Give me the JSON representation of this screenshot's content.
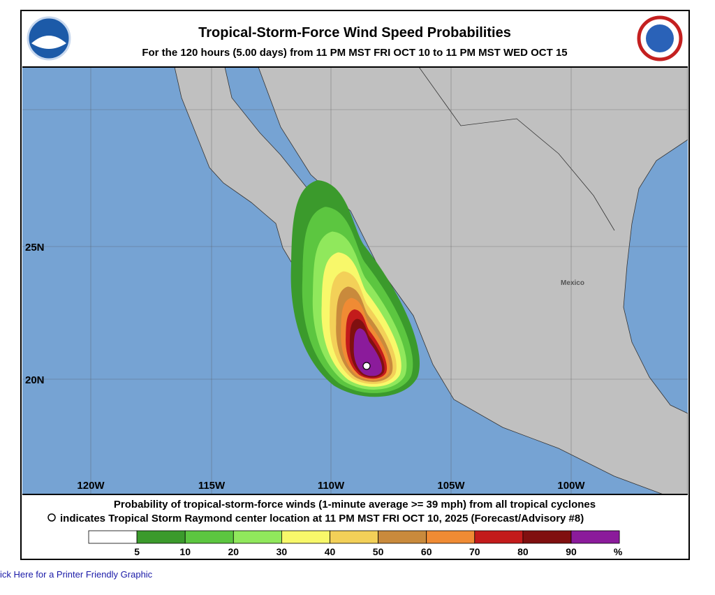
{
  "header": {
    "title": "Tropical-Storm-Force Wind Speed Probabilities",
    "subtitle": "For the 120 hours (5.00 days) from 11 PM MST FRI OCT 10 to 11 PM MST WED OCT 15"
  },
  "map": {
    "lon_labels": [
      "120W",
      "115W",
      "110W",
      "105W",
      "100W"
    ],
    "lat_labels": [
      "25N",
      "20N"
    ],
    "place_label": "Mexico"
  },
  "caption": {
    "line1": "Probability of tropical-storm-force winds (1-minute average >= 39 mph) from all tropical cyclones",
    "line2": "indicates Tropical Storm Raymond center location at 11 PM MST FRI OCT 10, 2025 (Forecast/Advisory #8)"
  },
  "legend": {
    "ticks": [
      "5",
      "10",
      "20",
      "30",
      "40",
      "50",
      "60",
      "70",
      "80",
      "90"
    ],
    "unit": "%",
    "colors": [
      "#ffffff",
      "#3b9a2c",
      "#5cc640",
      "#90e85c",
      "#f8f86a",
      "#f3d058",
      "#c98a3c",
      "#f08b34",
      "#c31b1b",
      "#801010",
      "#8b1b9b"
    ]
  },
  "link": "ick Here for a Printer Friendly Graphic"
}
